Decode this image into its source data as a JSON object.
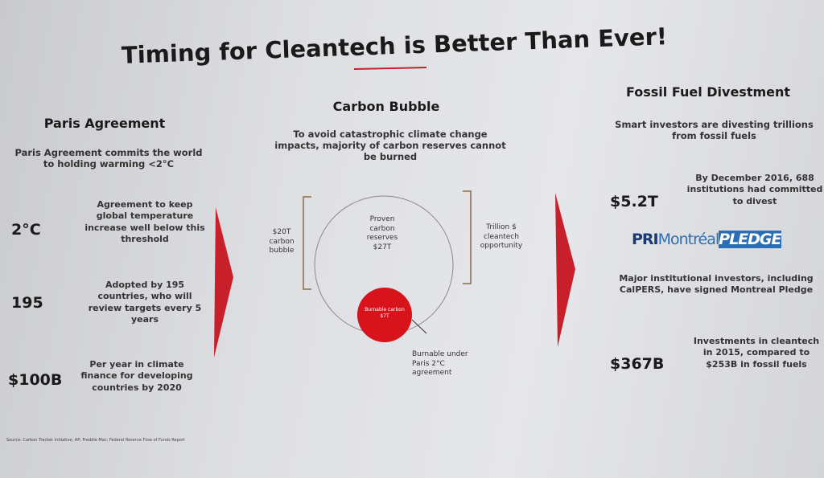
{
  "slide": {
    "title": "Timing for Cleantech is Better Than Ever!",
    "columns": [
      {
        "heading": "Paris Agreement",
        "intro": "Paris Agreement commits the world to holding warming <2°C",
        "items": [
          {
            "figure": "2°C",
            "text": "Agreement to keep global temperature increase well below this threshold"
          },
          {
            "figure": "195",
            "text": "Adopted by 195 countries, who will review targets every 5 years"
          },
          {
            "figure": "$100B",
            "text": "Per year in climate finance for developing countries by 2020"
          }
        ]
      },
      {
        "heading": "Carbon Bubble",
        "intro": "To avoid catastrophic climate change impacts, majority of carbon reserves cannot be burned",
        "big_circle": "Proven carbon reserves $27T",
        "left_bracket": "$20T carbon bubble",
        "right_bracket": "Trillion $ cleantech opportunity",
        "small_circle": "Burnable carbon $7T",
        "callout": "Burnable under Paris 2°C agreement"
      },
      {
        "heading": "Fossil Fuel Divestment",
        "intro": "Smart investors are divesting trillions from fossil fuels",
        "items": [
          {
            "figure": "$5.2T",
            "text": "By December 2016, 688 institutions had committed to divest"
          },
          {
            "figure": "$367B",
            "text": "Investments in cleantech in 2015, compared to $253B in fossil fuels"
          }
        ],
        "logo": [
          "PRI",
          "Montréal",
          "PLEDGE"
        ],
        "logo_caption": "Major institutional investors, including CalPERS, have signed Montreal Pledge"
      }
    ],
    "source": "Source: Carbon Tracker Initiative; AP; Freddie Mac; Federal Reserve Flow of Funds Report"
  }
}
